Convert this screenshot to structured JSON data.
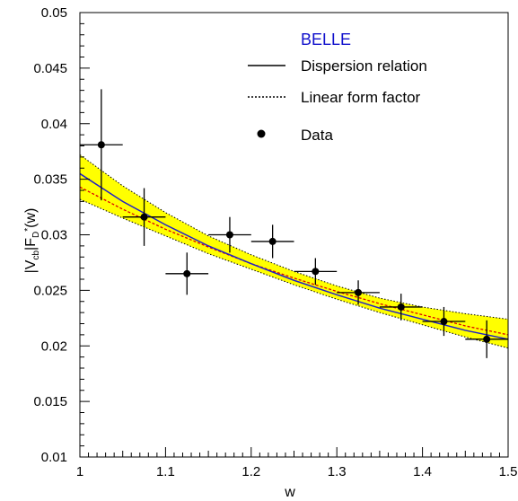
{
  "chart_data": {
    "type": "scatter",
    "title": "",
    "xlabel": "w",
    "ylabel": {
      "main": "|V",
      "sub1": "cb",
      "mid": "|F",
      "sub2": "D",
      "sup2": "*",
      "tail": "(w)"
    },
    "xlim": [
      1.0,
      1.5
    ],
    "ylim": [
      0.01,
      0.05
    ],
    "x_ticks": [
      "1",
      "1.1",
      "1.2",
      "1.3",
      "1.4",
      "1.5"
    ],
    "y_ticks": [
      "0.01",
      "0.015",
      "0.02",
      "0.025",
      "0.03",
      "0.035",
      "0.04",
      "0.045",
      "0.05"
    ],
    "grid": false,
    "legend": {
      "title": "BELLE",
      "title_color": "#1010cc",
      "position": "top-right",
      "entries": [
        {
          "label": "Dispersion relation",
          "style": "solid"
        },
        {
          "label": "Linear form factor",
          "style": "dotted"
        },
        {
          "label": "Data",
          "style": "marker"
        }
      ]
    },
    "data_series": {
      "name": "Data",
      "points": [
        {
          "x": 1.025,
          "y": 0.0381,
          "xerr": 0.025,
          "yerr": 0.005
        },
        {
          "x": 1.075,
          "y": 0.0316,
          "xerr": 0.025,
          "yerr": 0.0026
        },
        {
          "x": 1.125,
          "y": 0.0265,
          "xerr": 0.025,
          "yerr": 0.0019
        },
        {
          "x": 1.175,
          "y": 0.03,
          "xerr": 0.025,
          "yerr": 0.0016
        },
        {
          "x": 1.225,
          "y": 0.0294,
          "xerr": 0.025,
          "yerr": 0.0015
        },
        {
          "x": 1.275,
          "y": 0.0267,
          "xerr": 0.025,
          "yerr": 0.0012
        },
        {
          "x": 1.325,
          "y": 0.0248,
          "xerr": 0.025,
          "yerr": 0.0011
        },
        {
          "x": 1.375,
          "y": 0.0235,
          "xerr": 0.025,
          "yerr": 0.0012
        },
        {
          "x": 1.425,
          "y": 0.0222,
          "xerr": 0.025,
          "yerr": 0.0013
        },
        {
          "x": 1.475,
          "y": 0.0206,
          "xerr": 0.025,
          "yerr": 0.0017
        }
      ]
    },
    "dispersion_curve": {
      "x": [
        1.0,
        1.05,
        1.1,
        1.15,
        1.2,
        1.25,
        1.3,
        1.35,
        1.4,
        1.45,
        1.5
      ],
      "y": [
        0.0355,
        0.033,
        0.0309,
        0.029,
        0.0274,
        0.0259,
        0.0246,
        0.0234,
        0.0224,
        0.0214,
        0.0206
      ],
      "color": "#2020c8"
    },
    "linear_curve": {
      "x": [
        1.0,
        1.05,
        1.1,
        1.15,
        1.2,
        1.25,
        1.3,
        1.35,
        1.4,
        1.45,
        1.5
      ],
      "y": [
        0.0343,
        0.0323,
        0.0305,
        0.0289,
        0.0274,
        0.0261,
        0.0249,
        0.0238,
        0.0228,
        0.0218,
        0.021
      ],
      "color": "#dd0000"
    },
    "error_band": {
      "x": [
        1.0,
        1.05,
        1.1,
        1.15,
        1.2,
        1.25,
        1.3,
        1.35,
        1.4,
        1.45,
        1.5
      ],
      "upper": [
        0.0372,
        0.0344,
        0.032,
        0.0299,
        0.0282,
        0.0267,
        0.0254,
        0.0243,
        0.0235,
        0.0229,
        0.0224
      ],
      "lower": [
        0.0332,
        0.0315,
        0.0299,
        0.0283,
        0.0269,
        0.0255,
        0.0242,
        0.023,
        0.0219,
        0.0208,
        0.0198
      ],
      "color": "#ffff00"
    }
  }
}
